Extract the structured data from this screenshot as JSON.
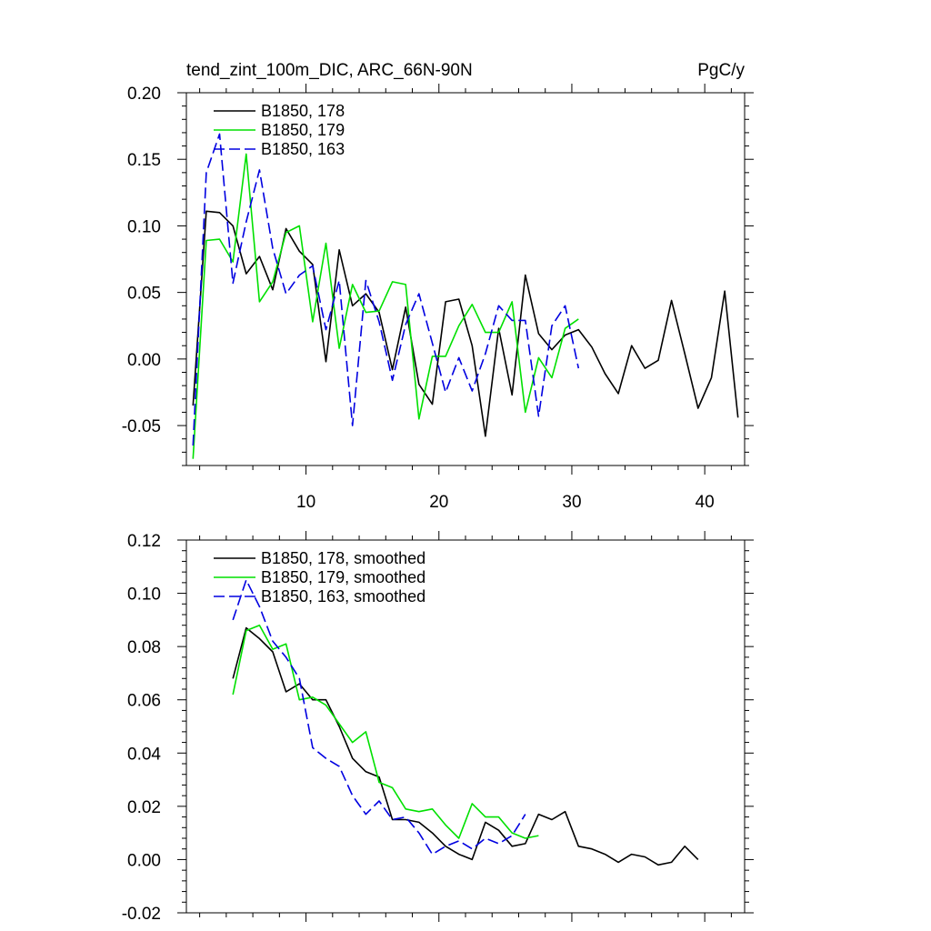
{
  "chart_data": [
    {
      "type": "line",
      "title": "tend_zint_100m_DIC, ARC_66N-90N",
      "units": "PgC/y",
      "xlim": [
        1,
        43
      ],
      "ylim": [
        -0.08,
        0.2
      ],
      "xticks": [
        10,
        20,
        30,
        40
      ],
      "xtick_labels": [
        "10",
        "20",
        "30",
        "40"
      ],
      "yticks": [
        -0.05,
        0.0,
        0.05,
        0.1,
        0.15,
        0.2
      ],
      "ytick_labels": [
        "-0.05",
        "0.00",
        "0.05",
        "0.10",
        "0.15",
        "0.20"
      ],
      "legend_position": "top-left",
      "series": [
        {
          "name": "B1850, 178",
          "color": "#000000",
          "dash": "solid",
          "x": [
            1.5,
            2.5,
            3.5,
            4.5,
            5.5,
            6.5,
            7.5,
            8.5,
            9.5,
            10.5,
            11.5,
            12.5,
            13.5,
            14.5,
            15.5,
            16.5,
            17.5,
            18.5,
            19.5,
            20.5,
            21.5,
            22.5,
            23.5,
            24.5,
            25.5,
            26.5,
            27.5,
            28.5,
            29.5,
            30.5,
            31.5,
            32.5,
            33.5,
            34.5,
            35.5,
            36.5,
            37.5,
            38.5,
            39.5,
            40.5,
            41.5,
            42.5
          ],
          "values": [
            -0.035,
            0.111,
            0.11,
            0.1,
            0.064,
            0.077,
            0.052,
            0.098,
            0.081,
            0.071,
            -0.002,
            0.082,
            0.04,
            0.049,
            0.035,
            -0.008,
            0.039,
            -0.019,
            -0.034,
            0.043,
            0.045,
            0.01,
            -0.058,
            0.023,
            -0.027,
            0.063,
            0.019,
            0.007,
            0.018,
            0.022,
            0.009,
            -0.011,
            -0.026,
            0.01,
            -0.007,
            -0.001,
            0.044,
            0.004,
            -0.037,
            -0.014,
            0.051,
            -0.044
          ]
        },
        {
          "name": "B1850, 179",
          "color": "#00e000",
          "dash": "solid",
          "x": [
            1.5,
            2.5,
            3.5,
            4.5,
            5.5,
            6.5,
            7.5,
            8.5,
            9.5,
            10.5,
            11.5,
            12.5,
            13.5,
            14.5,
            15.5,
            16.5,
            17.5,
            18.5,
            19.5,
            20.5,
            21.5,
            22.5,
            23.5,
            24.5,
            25.5,
            26.5,
            27.5,
            28.5,
            29.5,
            30.5
          ],
          "values": [
            -0.075,
            0.089,
            0.09,
            0.073,
            0.154,
            0.043,
            0.058,
            0.095,
            0.1,
            0.028,
            0.087,
            0.008,
            0.056,
            0.035,
            0.036,
            0.058,
            0.056,
            -0.045,
            0.002,
            0.002,
            0.025,
            0.041,
            0.02,
            0.02,
            0.043,
            -0.04,
            0.001,
            -0.014,
            0.023,
            0.03
          ]
        },
        {
          "name": "B1850, 163",
          "color": "#0000e0",
          "dash": "dashed",
          "x": [
            1.5,
            2.5,
            3.5,
            4.5,
            5.5,
            6.5,
            7.5,
            8.5,
            9.5,
            10.5,
            11.5,
            12.5,
            13.5,
            14.5,
            15.5,
            16.5,
            17.5,
            18.5,
            19.5,
            20.5,
            21.5,
            22.5,
            23.5,
            24.5,
            25.5,
            26.5,
            27.5,
            28.5,
            29.5,
            30.5
          ],
          "values": [
            -0.065,
            0.14,
            0.169,
            0.057,
            0.103,
            0.142,
            0.083,
            0.049,
            0.063,
            0.07,
            0.022,
            0.059,
            -0.05,
            0.059,
            0.028,
            -0.016,
            0.026,
            0.049,
            0.012,
            -0.025,
            0.001,
            -0.024,
            0.004,
            0.04,
            0.029,
            0.029,
            -0.043,
            0.025,
            0.04,
            -0.007
          ]
        }
      ]
    },
    {
      "type": "line",
      "title": "",
      "xlim": [
        1,
        43
      ],
      "ylim": [
        -0.02,
        0.12
      ],
      "xticks": [
        10,
        20,
        30,
        40
      ],
      "xtick_labels": [],
      "yticks": [
        -0.02,
        0.0,
        0.02,
        0.04,
        0.06,
        0.08,
        0.1,
        0.12
      ],
      "ytick_labels": [
        "-0.02",
        "0.00",
        "0.02",
        "0.04",
        "0.06",
        "0.08",
        "0.10",
        "0.12"
      ],
      "legend_position": "top-left",
      "series": [
        {
          "name": "B1850, 178, smoothed",
          "color": "#000000",
          "dash": "solid",
          "x": [
            4.5,
            5.5,
            6.5,
            7.5,
            8.5,
            9.5,
            10.5,
            11.5,
            12.5,
            13.5,
            14.5,
            15.5,
            16.5,
            17.5,
            18.5,
            19.5,
            20.5,
            21.5,
            22.5,
            23.5,
            24.5,
            25.5,
            26.5,
            27.5,
            28.5,
            29.5,
            30.5,
            31.5,
            32.5,
            33.5,
            34.5,
            35.5,
            36.5,
            37.5,
            38.5,
            39.5
          ],
          "values": [
            0.068,
            0.087,
            0.083,
            0.078,
            0.063,
            0.066,
            0.06,
            0.06,
            0.05,
            0.038,
            0.033,
            0.031,
            0.015,
            0.015,
            0.014,
            0.01,
            0.005,
            0.002,
            0.0,
            0.014,
            0.011,
            0.005,
            0.006,
            0.017,
            0.015,
            0.018,
            0.005,
            0.004,
            0.002,
            -0.001,
            0.002,
            0.001,
            -0.002,
            -0.001,
            0.005,
            0.0
          ]
        },
        {
          "name": "B1850, 179, smoothed",
          "color": "#00e000",
          "dash": "solid",
          "x": [
            4.5,
            5.5,
            6.5,
            7.5,
            8.5,
            9.5,
            10.5,
            11.5,
            12.5,
            13.5,
            14.5,
            15.5,
            16.5,
            17.5,
            18.5,
            19.5,
            20.5,
            21.5,
            22.5,
            23.5,
            24.5,
            25.5,
            26.5,
            27.5
          ],
          "values": [
            0.062,
            0.086,
            0.088,
            0.079,
            0.081,
            0.06,
            0.061,
            0.058,
            0.051,
            0.044,
            0.048,
            0.029,
            0.027,
            0.019,
            0.018,
            0.019,
            0.013,
            0.008,
            0.021,
            0.016,
            0.016,
            0.01,
            0.008,
            0.009
          ]
        },
        {
          "name": "B1850, 163, smoothed",
          "color": "#0000e0",
          "dash": "dashed",
          "x": [
            4.5,
            5.5,
            6.5,
            7.5,
            8.5,
            9.5,
            10.5,
            11.5,
            12.5,
            13.5,
            14.5,
            15.5,
            16.5,
            17.5,
            18.5,
            19.5,
            20.5,
            21.5,
            22.5,
            23.5,
            24.5,
            25.5,
            26.5
          ],
          "values": [
            0.09,
            0.105,
            0.095,
            0.082,
            0.076,
            0.068,
            0.042,
            0.038,
            0.035,
            0.024,
            0.017,
            0.022,
            0.015,
            0.016,
            0.01,
            0.002,
            0.005,
            0.007,
            0.004,
            0.008,
            0.006,
            0.009,
            0.017
          ]
        }
      ]
    }
  ]
}
